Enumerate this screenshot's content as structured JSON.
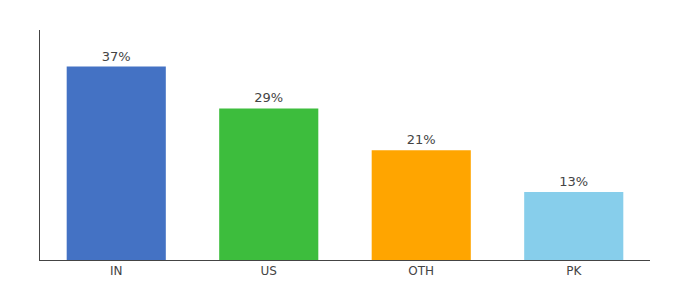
{
  "chart_data": {
    "type": "bar",
    "categories": [
      "IN",
      "US",
      "OTH",
      "PK"
    ],
    "values": [
      37,
      29,
      21,
      13
    ],
    "value_labels": [
      "37%",
      "29%",
      "21%",
      "13%"
    ],
    "colors": [
      "#4472C4",
      "#3DBD3D",
      "#FFA500",
      "#87CEEB"
    ],
    "ylim": [
      0,
      44
    ],
    "yticks": [],
    "data_labels": true,
    "tick_labels": "x",
    "grid": false
  }
}
